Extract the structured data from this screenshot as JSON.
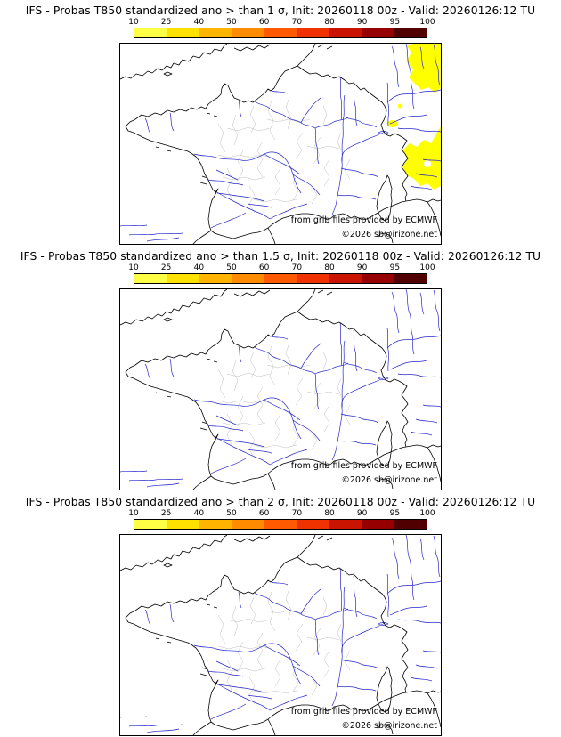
{
  "colorbar": {
    "ticks": [
      "10",
      "25",
      "40",
      "50",
      "60",
      "70",
      "80",
      "90",
      "95",
      "100"
    ],
    "segment_colors": [
      "#ffff46",
      "#ffe100",
      "#ffb400",
      "#ff8c00",
      "#ff5a00",
      "#f03200",
      "#c81400",
      "#960000",
      "#500000"
    ]
  },
  "panels": [
    {
      "sigma_threshold": "1",
      "title": "IFS - Probas T850  standardized ano > than 1 σ, Init: 20260118 00z - Valid: 20260126:12 TU",
      "credit_line1": "from grib files provided by ECMWF",
      "credit_line2": "©2026 sb@irizone.net",
      "has_anomaly_shading": true
    },
    {
      "sigma_threshold": "1.5",
      "title": "IFS - Probas T850  standardized ano > than 1.5 σ, Init: 20260118 00z - Valid: 20260126:12 TU",
      "credit_line1": "from grib files provided by ECMWF",
      "credit_line2": "©2026 sb@irizone.net",
      "has_anomaly_shading": false
    },
    {
      "sigma_threshold": "2",
      "title": "IFS - Probas T850  standardized ano > than 2 σ, Init: 20260118 00z - Valid: 20260126:12 TU",
      "credit_line1": "from grib files provided by ECMWF",
      "credit_line2": "©2026 sb@irizone.net",
      "has_anomaly_shading": false
    }
  ],
  "map": {
    "coast_color": "#000000",
    "river_color": "#2828cc",
    "department_border_color": "#bdbdbd",
    "anomaly_fill_color": "#ffff00",
    "background_color": "#ffffff"
  }
}
